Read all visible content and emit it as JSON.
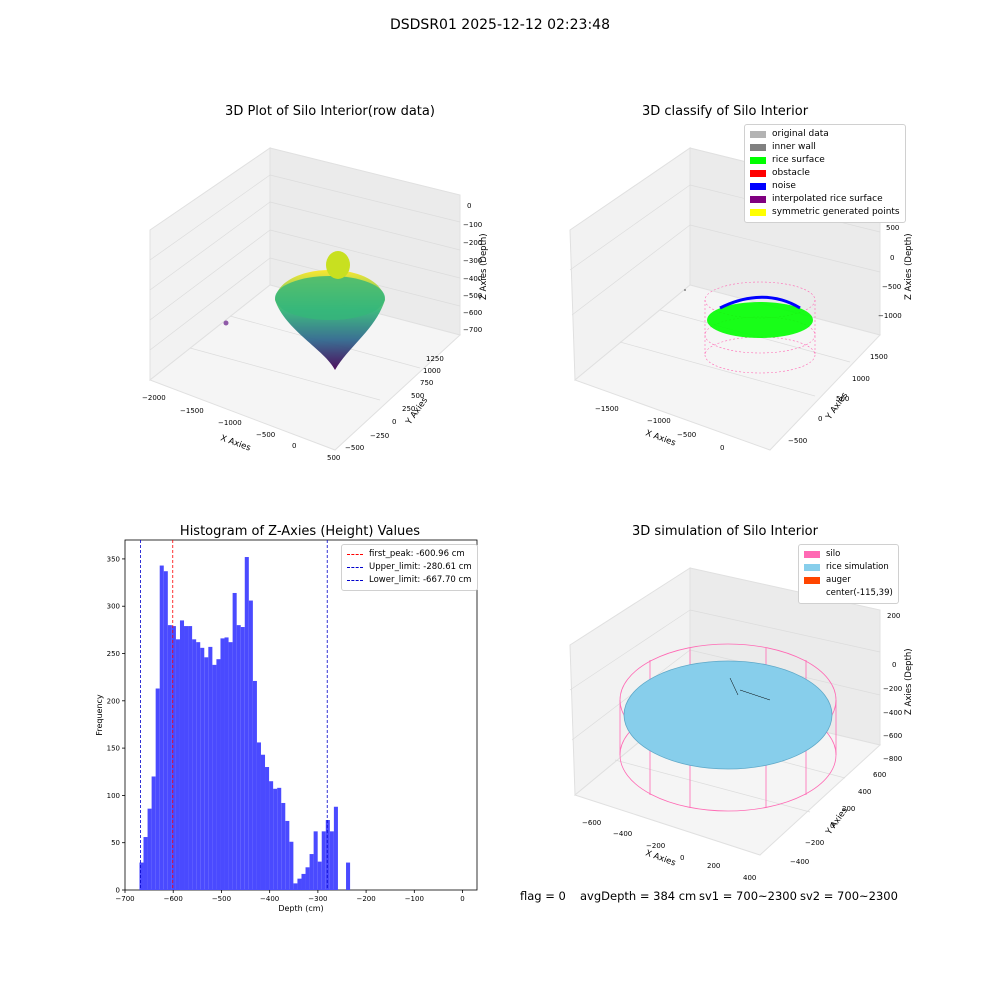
{
  "figure": {
    "suptitle": "DSDSR01 2025-12-12 02:23:48",
    "footer": {
      "flag": "flag = 0",
      "avgdepth": "avgDepth = 384 cm",
      "sv1": "sv1 = 700~2300",
      "sv2": "sv2 = 700~2300"
    }
  },
  "chart_data": [
    {
      "type": "scatter",
      "title": "3D Plot of Silo Interior(row data)",
      "xlabel": "X Axies",
      "ylabel": "Y Axies",
      "zlabel": "Z Axies (Depth)",
      "x_ticks": [
        "−2000",
        "−1500",
        "−1000",
        "−500",
        "0",
        "500"
      ],
      "y_ticks": [
        "−500",
        "−250",
        "0",
        "250",
        "500",
        "750",
        "1000",
        "1250"
      ],
      "z_ticks": [
        "0",
        "−100",
        "−200",
        "−300",
        "−400",
        "−500",
        "−600",
        "−700"
      ],
      "colormap": "viridis"
    },
    {
      "type": "scatter",
      "title": "3D classify of Silo Interior",
      "xlabel": "X Axies",
      "ylabel": "Y Axies",
      "zlabel": "Z Axies (Depth)",
      "x_ticks": [
        "−1500",
        "−1000",
        "−500",
        "0"
      ],
      "y_ticks": [
        "−500",
        "0",
        "500",
        "1000",
        "1500"
      ],
      "z_ticks": [
        "500",
        "0",
        "−500",
        "−1000"
      ],
      "legend": [
        {
          "label": "original data",
          "color": "#b3b3b3"
        },
        {
          "label": "inner wall",
          "color": "#808080"
        },
        {
          "label": "rice surface",
          "color": "#00ff00"
        },
        {
          "label": "obstacle",
          "color": "#ff0000"
        },
        {
          "label": "noise",
          "color": "#0000ff"
        },
        {
          "label": "interpolated rice surface",
          "color": "#800080"
        },
        {
          "label": "symmetric generated points",
          "color": "#ffff00"
        }
      ]
    },
    {
      "type": "bar",
      "title": "Histogram of Z-Axies (Height) Values",
      "xlabel": "Depth (cm)",
      "ylabel": "Frequency",
      "bar_color": "#4a4aff",
      "bin_start": -670,
      "bin_width": 8.4,
      "counts": [
        29,
        56,
        86,
        120,
        213,
        343,
        337,
        280,
        279,
        265,
        285,
        279,
        279,
        265,
        262,
        256,
        246,
        257,
        238,
        244,
        266,
        267,
        262,
        314,
        280,
        278,
        352,
        306,
        221,
        156,
        143,
        130,
        115,
        107,
        108,
        92,
        73,
        51,
        7,
        12,
        17,
        24,
        38,
        62,
        30,
        62,
        74,
        62,
        88,
        0,
        0,
        29
      ],
      "xlim": [
        -700,
        30
      ],
      "ylim": [
        0,
        370
      ],
      "x_ticks": [
        -700,
        -600,
        -500,
        -400,
        -300,
        -200,
        -100,
        0
      ],
      "y_ticks": [
        0,
        50,
        100,
        150,
        200,
        250,
        300,
        350
      ],
      "vlines": [
        {
          "label": "first_peak: -600.96 cm",
          "value": -600.96,
          "color": "#ff0000"
        },
        {
          "label": "Upper_limit: -280.61 cm",
          "value": -280.61,
          "color": "#0000cc"
        },
        {
          "label": "Lower_limit: -667.70 cm",
          "value": -667.7,
          "color": "#0000cc"
        }
      ]
    },
    {
      "type": "area",
      "title": "3D simulation of Silo Interior",
      "xlabel": "X Axies",
      "ylabel": "Y Axies",
      "zlabel": "Z Axies (Depth)",
      "x_ticks": [
        "−600",
        "−400",
        "−200",
        "0",
        "200",
        "400"
      ],
      "y_ticks": [
        "600",
        "400",
        "200",
        "0",
        "−200",
        "−400"
      ],
      "z_ticks": [
        "200",
        "0",
        "−200",
        "−400",
        "−600",
        "−800"
      ],
      "legend": [
        {
          "label": "silo",
          "color": "#ff69b4"
        },
        {
          "label": "rice simulation",
          "color": "#87ceeb"
        },
        {
          "label": "auger",
          "color": "#ff4500"
        },
        {
          "label": "center(-115,39)",
          "color": "#ffffff"
        }
      ]
    }
  ]
}
